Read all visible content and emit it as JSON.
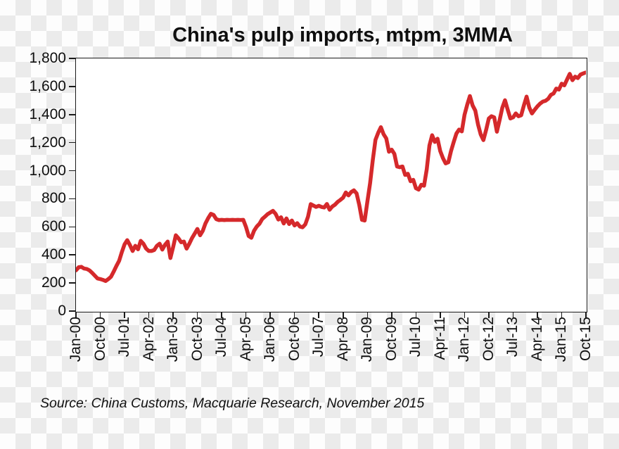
{
  "title": "China's pulp imports, mtpm, 3MMA",
  "source_note": "Source: China Customs, Macquarie Research, November 2015",
  "colors": {
    "line": "#D5292B",
    "axis": "#1A1A1A",
    "text": "#0F0F0F",
    "plot_background": "#FFFFFF",
    "checker_light": "#FDFDFD",
    "checker_gray": "#EBEBEB"
  },
  "chart_data": {
    "type": "line",
    "title": "China's pulp imports, mtpm, 3MMA",
    "grid": false,
    "legend_position": "none",
    "y_axis": {
      "range": [
        0,
        1800
      ],
      "tick_values": [
        0,
        200,
        400,
        600,
        800,
        1000,
        1200,
        1400,
        1600,
        1800
      ],
      "tick_labels": [
        "0",
        "200",
        "400",
        "600",
        "800",
        "1,000",
        "1,200",
        "1,400",
        "1,600",
        "1,800"
      ]
    },
    "x_axis": {
      "frequency": "monthly",
      "start": "Jan-00",
      "end": "Oct-15",
      "tick_month_indices": [
        0,
        9,
        18,
        27,
        36,
        45,
        54,
        63,
        72,
        81,
        90,
        99,
        108,
        117,
        126,
        135,
        144,
        153,
        162,
        171,
        180,
        189
      ],
      "tick_labels": [
        "Jan-00",
        "Oct-00",
        "Jul-01",
        "Apr-02",
        "Jan-03",
        "Oct-03",
        "Jul-04",
        "Apr-05",
        "Jan-06",
        "Oct-06",
        "Jul-07",
        "Apr-08",
        "Jan-09",
        "Oct-09",
        "Jul-10",
        "Apr-11",
        "Jan-12",
        "Oct-12",
        "Jul-13",
        "Apr-14",
        "Jan-15",
        "Oct-15"
      ]
    },
    "series": [
      {
        "name": "China pulp imports, mtpm, 3MMA",
        "color": "#D5292B",
        "x_start": "Jan-00",
        "x_end": "Oct-15",
        "values": [
          290,
          312,
          315,
          303,
          300,
          290,
          272,
          252,
          232,
          228,
          222,
          214,
          228,
          245,
          282,
          322,
          358,
          420,
          475,
          505,
          470,
          428,
          465,
          440,
          500,
          480,
          445,
          428,
          428,
          435,
          465,
          480,
          438,
          472,
          495,
          378,
          455,
          540,
          518,
          490,
          495,
          445,
          480,
          520,
          552,
          585,
          540,
          572,
          625,
          662,
          693,
          685,
          655,
          648,
          650,
          648,
          650,
          649,
          650,
          649,
          650,
          649,
          650,
          600,
          535,
          522,
          572,
          602,
          622,
          655,
          672,
          690,
          702,
          714,
          692,
          652,
          668,
          624,
          660,
          620,
          645,
          610,
          626,
          602,
          597,
          618,
          672,
          762,
          752,
          742,
          750,
          742,
          738,
          763,
          722,
          745,
          758,
          778,
          792,
          808,
          845,
          824,
          848,
          860,
          838,
          755,
          650,
          645,
          780,
          910,
          1075,
          1220,
          1270,
          1310,
          1260,
          1230,
          1135,
          1150,
          1120,
          1030,
          1025,
          1030,
          970,
          978,
          925,
          935,
          875,
          865,
          900,
          893,
          1010,
          1180,
          1253,
          1205,
          1228,
          1140,
          1090,
          1052,
          1060,
          1140,
          1205,
          1265,
          1293,
          1280,
          1398,
          1470,
          1532,
          1465,
          1428,
          1330,
          1258,
          1218,
          1290,
          1372,
          1388,
          1380,
          1278,
          1360,
          1448,
          1502,
          1435,
          1372,
          1380,
          1408,
          1388,
          1395,
          1465,
          1528,
          1450,
          1408,
          1434,
          1458,
          1478,
          1492,
          1498,
          1512,
          1540,
          1550,
          1585,
          1578,
          1620,
          1608,
          1650,
          1690,
          1645,
          1670,
          1660,
          1685,
          1693,
          1700
        ]
      }
    ]
  }
}
